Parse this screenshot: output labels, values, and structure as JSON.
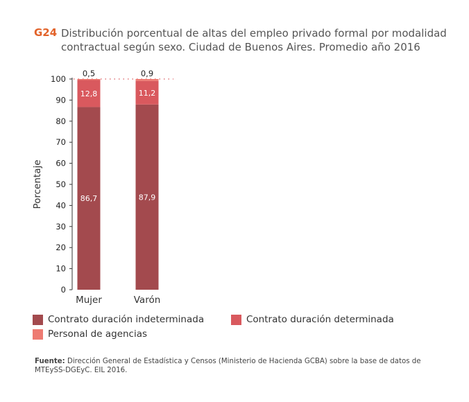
{
  "figure": {
    "id": "G24",
    "title": "Distribución porcentual de altas del empleo privado formal por modalidad contractual según sexo. Ciudad de Buenos Aires. Promedio año 2016"
  },
  "chart_data": {
    "type": "bar",
    "stacked": true,
    "categories": [
      "Mujer",
      "Varón"
    ],
    "series": [
      {
        "name": "Contrato duración indeterminada",
        "values": [
          86.7,
          87.9
        ],
        "labels": [
          "86,7",
          "87,9"
        ],
        "color": "#a34a4e"
      },
      {
        "name": "Contrato duración determinada",
        "values": [
          12.8,
          11.2
        ],
        "labels": [
          "12,8",
          "11,2"
        ],
        "color": "#d9595e"
      },
      {
        "name": "Personal de agencias",
        "values": [
          0.5,
          0.9
        ],
        "labels": [
          "0,5",
          "0,9"
        ],
        "color": "#ee7b72"
      }
    ],
    "ylabel": "Porcentaje",
    "xlabel": "",
    "ylim": [
      0,
      100
    ],
    "yticks": [
      0,
      10,
      20,
      30,
      40,
      50,
      60,
      70,
      80,
      90,
      100
    ],
    "gridline_at": 100,
    "colors": {
      "axis": "#333333",
      "grid": "#d9595e",
      "tick_text": "#222222",
      "inner_label": "#ffffff"
    }
  },
  "legend": {
    "items": [
      {
        "label": "Contrato duración indeterminada",
        "color": "#a34a4e"
      },
      {
        "label": "Contrato duración determinada",
        "color": "#d9595e"
      },
      {
        "label": "Personal de agencias",
        "color": "#ee7b72"
      }
    ]
  },
  "source": {
    "label": "Fuente:",
    "text": "Dirección General de Estadística y Censos (Ministerio de Hacienda GCBA) sobre la base de datos de MTEySS-DGEyC. EIL 2016."
  }
}
